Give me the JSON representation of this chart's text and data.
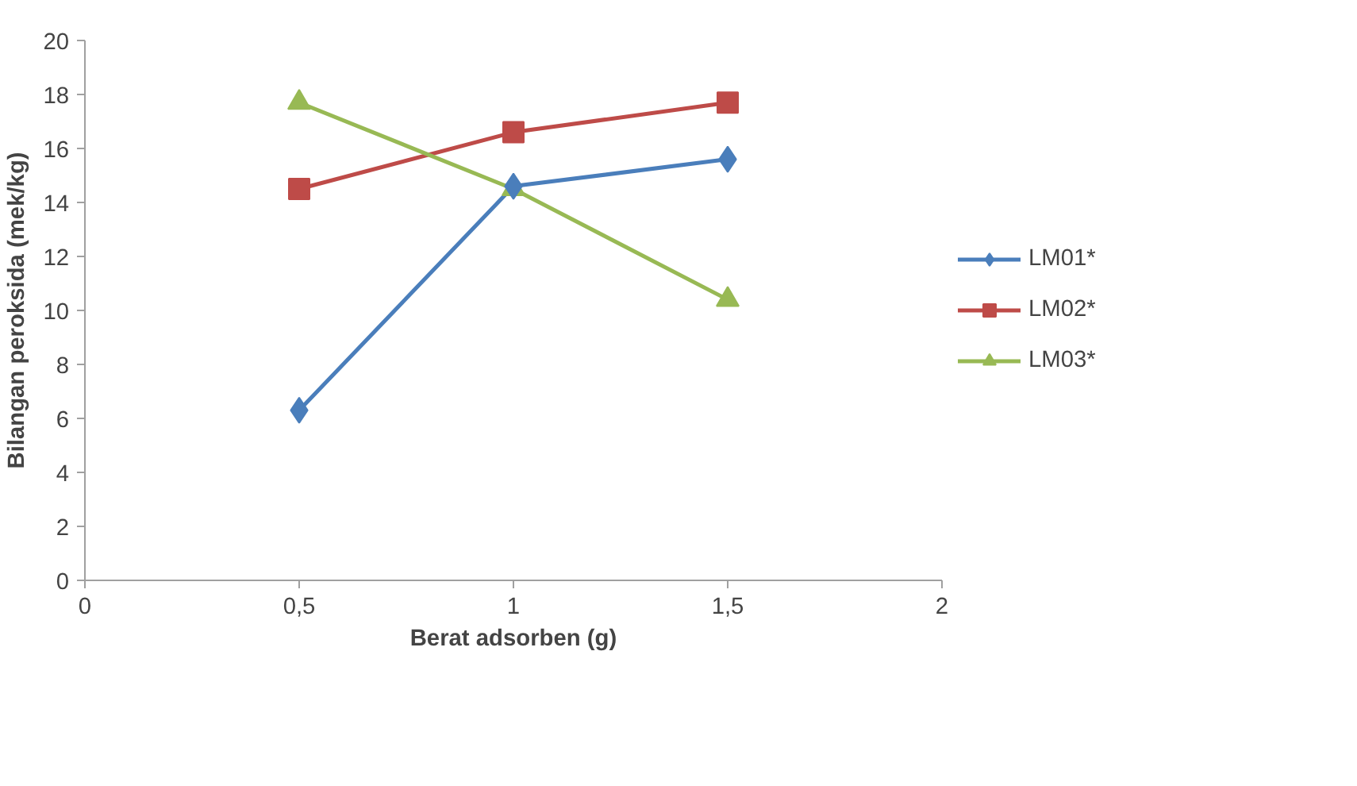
{
  "chart_data": {
    "type": "line",
    "xlabel": "Berat adsorben (g)",
    "ylabel": "Bilangan peroksida (mek/kg)",
    "x": [
      0.5,
      1,
      1.5
    ],
    "series": [
      {
        "name": "LM01*",
        "color": "#4a7ebb",
        "marker": "diamond",
        "values": [
          6.3,
          14.6,
          15.6
        ]
      },
      {
        "name": "LM02*",
        "color": "#be4b48",
        "marker": "square",
        "values": [
          14.5,
          16.6,
          17.7
        ]
      },
      {
        "name": "LM03*",
        "color": "#98b954",
        "marker": "triangle",
        "values": [
          17.7,
          14.5,
          10.4
        ]
      }
    ],
    "xlim": [
      0,
      2
    ],
    "xticks": [
      0,
      {
        "value": 0.5,
        "label": "0,5"
      },
      1,
      {
        "value": 1.5,
        "label": "1,5"
      },
      2
    ],
    "ylim": [
      0,
      20
    ],
    "yticks": [
      0,
      2,
      4,
      6,
      8,
      10,
      12,
      14,
      16,
      18,
      20
    ],
    "grid": false,
    "legend": "right",
    "line_style": "solid"
  }
}
